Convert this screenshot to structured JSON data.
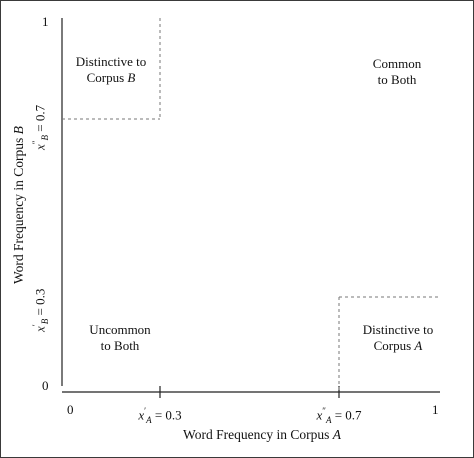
{
  "axes": {
    "x_title_prefix": "Word Frequency in Corpus ",
    "x_title_var": "A",
    "y_title_prefix": "Word Frequency in Corpus ",
    "y_title_var": "B",
    "x_tick_0": "0",
    "x_tick_1": "1",
    "y_tick_0": "0",
    "y_tick_1": "1",
    "x_thresh_low_var": "x",
    "x_thresh_low_sup": "′",
    "x_thresh_low_sub": "A",
    "x_thresh_low_val": " = 0.3",
    "x_thresh_high_var": "x",
    "x_thresh_high_sup": "″",
    "x_thresh_high_sub": "A",
    "x_thresh_high_val": " = 0.7",
    "y_thresh_low_var": "x",
    "y_thresh_low_sup": "′",
    "y_thresh_low_sub": "B",
    "y_thresh_low_val": " = 0.3",
    "y_thresh_high_var": "x",
    "y_thresh_high_sup": "″",
    "y_thresh_high_sub": "B",
    "y_thresh_high_val": " = 0.7"
  },
  "regions": {
    "distinctive_b_line1": "Distinctive to",
    "distinctive_b_line2_prefix": "Corpus ",
    "distinctive_b_line2_var": "B",
    "common_line1": "Common",
    "common_line2": "to Both",
    "uncommon_line1": "Uncommon",
    "uncommon_line2": "to Both",
    "distinctive_a_line1": "Distinctive to",
    "distinctive_a_line2_prefix": "Corpus ",
    "distinctive_a_line2_var": "A"
  }
}
